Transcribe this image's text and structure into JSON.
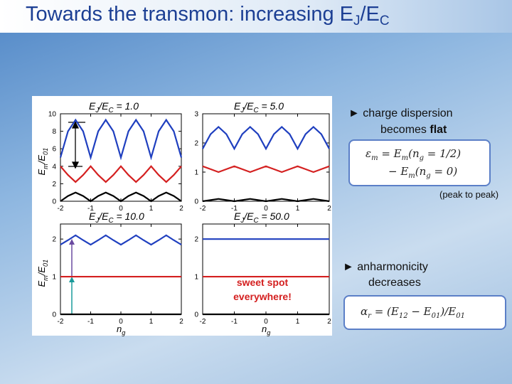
{
  "slide": {
    "title": [
      "Towards the transmon: increasing E",
      "J",
      "/E",
      "C"
    ],
    "bullet1": [
      "► charge dispersion",
      "becomes ",
      "flat"
    ],
    "formula1": [
      "ε",
      "m",
      " = E",
      "m",
      "(n",
      "g",
      " = 1/2)",
      "− E",
      "m",
      "(n",
      "g",
      " = 0)"
    ],
    "note1": "(peak to peak)",
    "bullet2": [
      "► anharmonicity",
      "decreases"
    ],
    "formula2": [
      "α",
      "r",
      " = (E",
      "12",
      " − E",
      "01",
      ")/E",
      "01"
    ]
  },
  "chart_data": [
    {
      "type": "line",
      "title": [
        "E",
        "J",
        "/E",
        "C",
        " = 1.0"
      ],
      "ylabel": [
        "E",
        "m",
        "/E",
        "01"
      ],
      "x": [
        -2,
        -1.75,
        -1.5,
        -1.25,
        -1,
        -0.75,
        -0.5,
        -0.25,
        0,
        0.25,
        0.5,
        0.75,
        1,
        1.25,
        1.5,
        1.75,
        2
      ],
      "xlim": [
        -2,
        2
      ],
      "xticks": [
        -2,
        -1,
        0,
        1,
        2
      ],
      "ylim": [
        0,
        10
      ],
      "yticks": [
        0,
        2,
        4,
        6,
        8,
        10
      ],
      "series": [
        {
          "color": "#000000",
          "values": [
            0,
            0.6,
            1,
            0.6,
            0,
            0.6,
            1,
            0.6,
            0,
            0.6,
            1,
            0.6,
            0,
            0.6,
            1,
            0.6,
            0
          ]
        },
        {
          "color": "#d42020",
          "values": [
            4,
            3,
            2.2,
            3,
            4,
            3,
            2.2,
            3,
            4,
            3,
            2.2,
            3,
            4,
            3,
            2.2,
            3,
            4
          ]
        },
        {
          "color": "#1f3fbf",
          "values": [
            5,
            8,
            9.3,
            8,
            5,
            8,
            9.3,
            8,
            5,
            8,
            9.3,
            8,
            5,
            8,
            9.3,
            8,
            5
          ]
        }
      ]
    },
    {
      "type": "line",
      "title": [
        "E",
        "J",
        "/E",
        "C",
        " = 5.0"
      ],
      "x": [
        -2,
        -1.75,
        -1.5,
        -1.25,
        -1,
        -0.75,
        -0.5,
        -0.25,
        0,
        0.25,
        0.5,
        0.75,
        1,
        1.25,
        1.5,
        1.75,
        2
      ],
      "xlim": [
        -2,
        2
      ],
      "xticks": [
        -2,
        -1,
        0,
        1,
        2
      ],
      "ylim": [
        0,
        3
      ],
      "yticks": [
        0,
        1,
        2,
        3
      ],
      "series": [
        {
          "color": "#000000",
          "values": [
            0,
            0.04,
            0.08,
            0.04,
            0,
            0.04,
            0.08,
            0.04,
            0,
            0.04,
            0.08,
            0.04,
            0,
            0.04,
            0.08,
            0.04,
            0
          ]
        },
        {
          "color": "#d42020",
          "values": [
            1.2,
            1.1,
            1,
            1.1,
            1.2,
            1.1,
            1,
            1.1,
            1.2,
            1.1,
            1,
            1.1,
            1.2,
            1.1,
            1,
            1.1,
            1.2
          ]
        },
        {
          "color": "#1f3fbf",
          "values": [
            1.8,
            2.3,
            2.55,
            2.3,
            1.8,
            2.3,
            2.55,
            2.3,
            1.8,
            2.3,
            2.55,
            2.3,
            1.8,
            2.3,
            2.55,
            2.3,
            1.8
          ]
        }
      ]
    },
    {
      "type": "line",
      "title": [
        "E",
        "J",
        "/E",
        "C",
        " = 10.0"
      ],
      "ylabel": [
        "E",
        "m",
        "/E",
        "01"
      ],
      "xlabel": [
        "n",
        "g"
      ],
      "x": [
        -2,
        -1.75,
        -1.5,
        -1.25,
        -1,
        -0.75,
        -0.5,
        -0.25,
        0,
        0.25,
        0.5,
        0.75,
        1,
        1.25,
        1.5,
        1.75,
        2
      ],
      "xlim": [
        -2,
        2
      ],
      "xticks": [
        -2,
        -1,
        0,
        1,
        2
      ],
      "ylim": [
        0,
        2.4
      ],
      "yticks": [
        0,
        1,
        2
      ],
      "series": [
        {
          "color": "#000000",
          "values": [
            0,
            0,
            0,
            0,
            0,
            0,
            0,
            0,
            0,
            0,
            0,
            0,
            0,
            0,
            0,
            0,
            0
          ]
        },
        {
          "color": "#d42020",
          "values": [
            1,
            1,
            1,
            1,
            1,
            1,
            1,
            1,
            1,
            1,
            1,
            1,
            1,
            1,
            1,
            1,
            1
          ]
        },
        {
          "color": "#1f3fbf",
          "values": [
            1.85,
            1.97,
            2.1,
            1.97,
            1.85,
            1.97,
            2.1,
            1.97,
            1.85,
            1.97,
            2.1,
            1.97,
            1.85,
            1.97,
            2.1,
            1.97,
            1.85
          ]
        }
      ]
    },
    {
      "type": "line",
      "title": [
        "E",
        "J",
        "/E",
        "C",
        " = 50.0"
      ],
      "xlabel": [
        "n",
        "g"
      ],
      "annotation": [
        "sweet spot",
        "everywhere!"
      ],
      "x": [
        -2,
        -1.75,
        -1.5,
        -1.25,
        -1,
        -0.75,
        -0.5,
        -0.25,
        0,
        0.25,
        0.5,
        0.75,
        1,
        1.25,
        1.5,
        1.75,
        2
      ],
      "xlim": [
        -2,
        2
      ],
      "xticks": [
        -2,
        -1,
        0,
        1,
        2
      ],
      "ylim": [
        0,
        2.4
      ],
      "yticks": [
        0,
        1,
        2
      ],
      "series": [
        {
          "color": "#000000",
          "values": [
            0,
            0,
            0,
            0,
            0,
            0,
            0,
            0,
            0,
            0,
            0,
            0,
            0,
            0,
            0,
            0,
            0
          ]
        },
        {
          "color": "#d42020",
          "values": [
            1,
            1,
            1,
            1,
            1,
            1,
            1,
            1,
            1,
            1,
            1,
            1,
            1,
            1,
            1,
            1,
            1
          ]
        },
        {
          "color": "#1f3fbf",
          "values": [
            2,
            2,
            2,
            2,
            2,
            2,
            2,
            2,
            2,
            2,
            2,
            2,
            2,
            2,
            2,
            2,
            2
          ]
        }
      ]
    }
  ]
}
